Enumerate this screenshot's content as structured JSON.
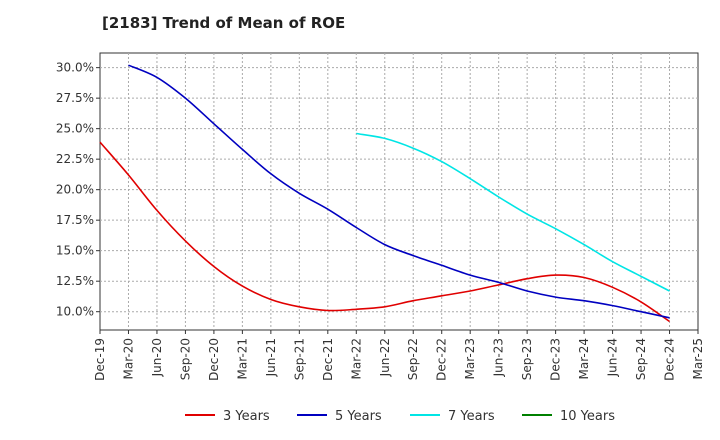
{
  "title": "[2183]  Trend of Mean of ROE",
  "chart_data": {
    "type": "line",
    "title": "[2183]  Trend of Mean of ROE",
    "xlabel": "",
    "ylabel": "",
    "ylim": [
      8.5,
      31.2
    ],
    "grid": true,
    "legend_position": "bottom",
    "x_ticks": [
      "Dec-19",
      "Mar-20",
      "Jun-20",
      "Sep-20",
      "Dec-20",
      "Mar-21",
      "Jun-21",
      "Sep-21",
      "Dec-21",
      "Mar-22",
      "Jun-22",
      "Sep-22",
      "Dec-22",
      "Mar-23",
      "Jun-23",
      "Sep-23",
      "Dec-23",
      "Mar-24",
      "Jun-24",
      "Sep-24",
      "Dec-24",
      "Mar-25"
    ],
    "y_ticks": [
      10.0,
      12.5,
      15.0,
      17.5,
      20.0,
      22.5,
      25.0,
      27.5,
      30.0
    ],
    "y_tick_labels": [
      "10.0%",
      "12.5%",
      "15.0%",
      "17.5%",
      "20.0%",
      "22.5%",
      "25.0%",
      "27.5%",
      "30.0%"
    ],
    "series": [
      {
        "name": "3 Years",
        "color": "#e00000",
        "x": [
          "Dec-19",
          "Mar-20",
          "Jun-20",
          "Sep-20",
          "Dec-20",
          "Mar-21",
          "Jun-21",
          "Sep-21",
          "Dec-21",
          "Mar-22",
          "Jun-22",
          "Sep-22",
          "Dec-22",
          "Mar-23",
          "Jun-23",
          "Sep-23",
          "Dec-23",
          "Mar-24",
          "Jun-24",
          "Sep-24",
          "Dec-24"
        ],
        "values": [
          23.9,
          21.2,
          18.3,
          15.8,
          13.7,
          12.1,
          11.0,
          10.4,
          10.1,
          10.2,
          10.4,
          10.9,
          11.3,
          11.7,
          12.2,
          12.7,
          13.0,
          12.8,
          12.0,
          10.8,
          9.2
        ]
      },
      {
        "name": "5 Years",
        "color": "#0000c0",
        "x": [
          "Mar-20",
          "Jun-20",
          "Sep-20",
          "Dec-20",
          "Mar-21",
          "Jun-21",
          "Sep-21",
          "Dec-21",
          "Mar-22",
          "Jun-22",
          "Sep-22",
          "Dec-22",
          "Mar-23",
          "Jun-23",
          "Sep-23",
          "Dec-23",
          "Mar-24",
          "Jun-24",
          "Sep-24",
          "Dec-24"
        ],
        "values": [
          30.2,
          29.2,
          27.5,
          25.4,
          23.3,
          21.3,
          19.7,
          18.4,
          16.9,
          15.5,
          14.6,
          13.8,
          13.0,
          12.4,
          11.7,
          11.2,
          10.9,
          10.5,
          10.0,
          9.5
        ]
      },
      {
        "name": "7 Years",
        "color": "#00e5e5",
        "x": [
          "Mar-22",
          "Jun-22",
          "Sep-22",
          "Dec-22",
          "Mar-23",
          "Jun-23",
          "Sep-23",
          "Dec-23",
          "Mar-24",
          "Jun-24",
          "Sep-24",
          "Dec-24"
        ],
        "values": [
          24.6,
          24.2,
          23.4,
          22.3,
          20.9,
          19.4,
          18.0,
          16.8,
          15.5,
          14.1,
          12.9,
          11.7
        ]
      },
      {
        "name": "10 Years",
        "color": "#008000",
        "x": [],
        "values": []
      }
    ]
  }
}
